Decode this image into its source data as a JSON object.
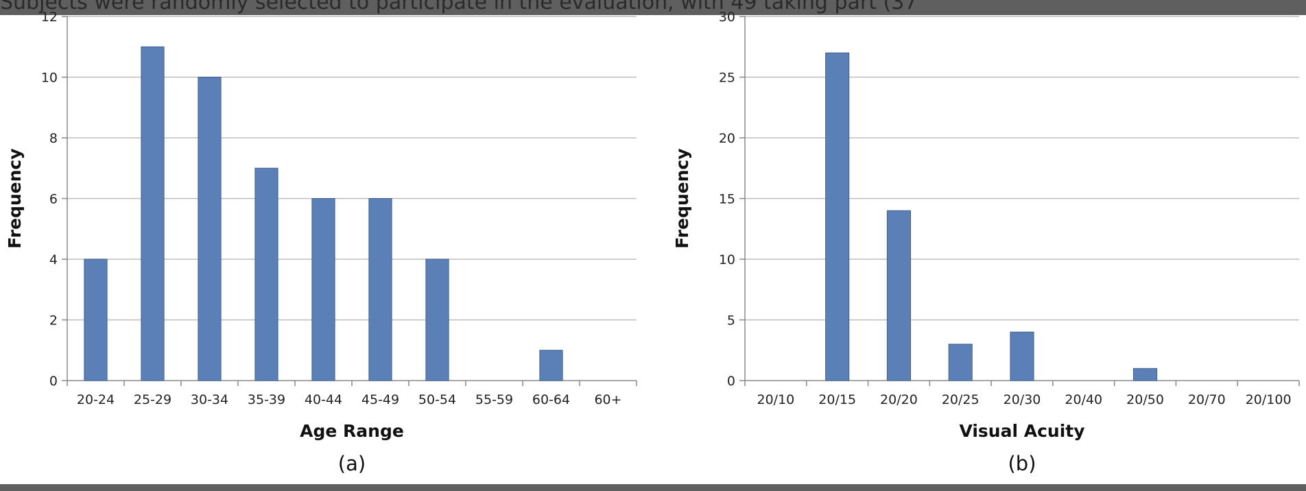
{
  "background_text": {
    "top_line": "Subjects were randomly selected to participate in the evaluation, with 49 taking part (37",
    "fragments": [
      "2",
      "a",
      "w",
      "a"
    ]
  },
  "chart_data": [
    {
      "type": "bar",
      "caption": "(a)",
      "xlabel": "Age Range",
      "ylabel": "Frequency",
      "ylim": [
        0,
        12
      ],
      "yticks": [
        0,
        2,
        4,
        6,
        8,
        10,
        12
      ],
      "grid": true,
      "color": "#5b80b8",
      "categories": [
        "20-24",
        "25-29",
        "30-34",
        "35-39",
        "40-44",
        "45-49",
        "50-54",
        "55-59",
        "60-64",
        "60+"
      ],
      "values": [
        4,
        11,
        10,
        7,
        6,
        6,
        4,
        0,
        1,
        0
      ]
    },
    {
      "type": "bar",
      "caption": "(b)",
      "xlabel": "Visual Acuity",
      "ylabel": "Frequency",
      "ylim": [
        0,
        30
      ],
      "yticks": [
        0,
        5,
        10,
        15,
        20,
        25,
        30
      ],
      "grid": true,
      "color": "#5b80b8",
      "categories": [
        "20/10",
        "20/15",
        "20/20",
        "20/25",
        "20/30",
        "20/40",
        "20/50",
        "20/70",
        "20/100"
      ],
      "values": [
        0,
        27,
        14,
        3,
        4,
        0,
        1,
        0,
        0
      ]
    }
  ]
}
